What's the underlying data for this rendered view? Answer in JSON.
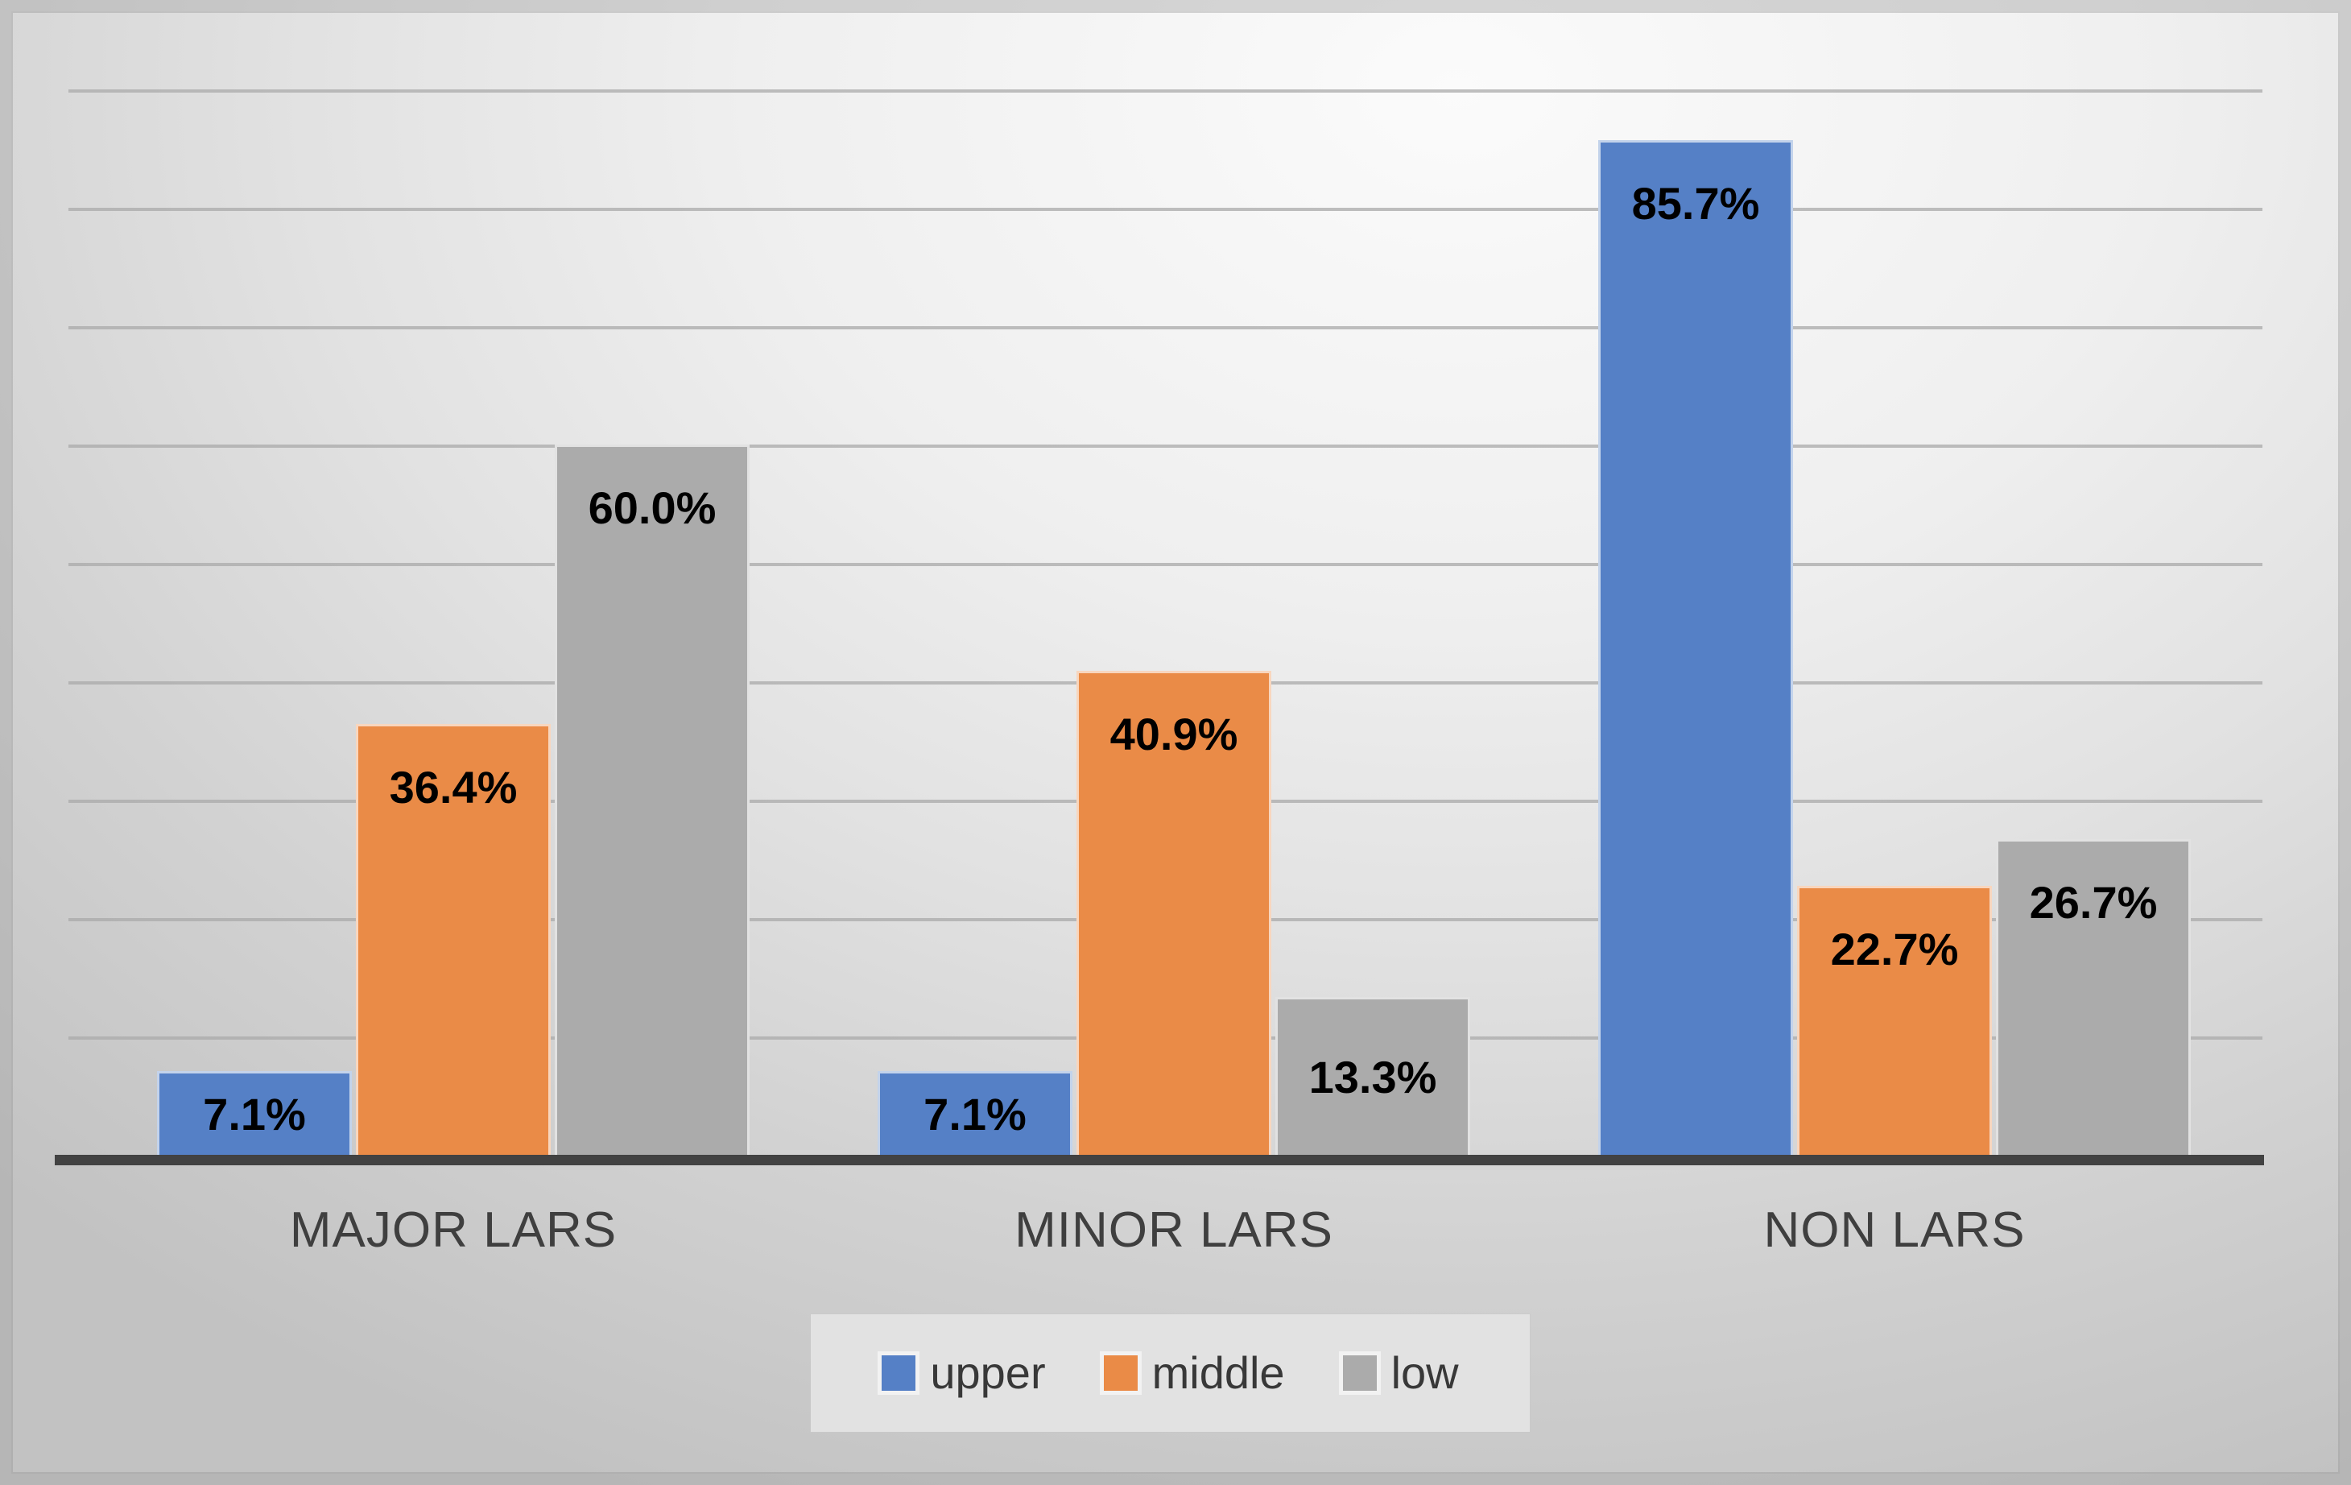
{
  "chart_data": {
    "type": "bar",
    "categories": [
      "MAJOR LARS",
      "MINOR LARS",
      "NON LARS"
    ],
    "series": [
      {
        "name": "upper",
        "color": "#5580c6",
        "values": [
          7.1,
          7.1,
          85.7
        ]
      },
      {
        "name": "middle",
        "color": "#ea8b47",
        "values": [
          36.4,
          40.9,
          22.7
        ]
      },
      {
        "name": "low",
        "color": "#ababab",
        "values": [
          60.0,
          13.3,
          26.7
        ]
      }
    ],
    "value_labels": [
      [
        "7.1%",
        "7.1%",
        "85.7%"
      ],
      [
        "36.4%",
        "40.9%",
        "22.7%"
      ],
      [
        "60.0%",
        "13.3%",
        "26.7%"
      ]
    ],
    "title": "",
    "xlabel": "",
    "ylabel": "",
    "ylim": [
      0,
      90
    ],
    "gridline_step_percent": 10,
    "grid": "horizontal",
    "legend_position": "bottom",
    "legend_entries": [
      "upper",
      "middle",
      "low"
    ],
    "axis_line_color": "#424242",
    "gridline_color": "#a9a9a9",
    "data_label_color": "#000000",
    "category_label_color": "#3f3f3f"
  }
}
